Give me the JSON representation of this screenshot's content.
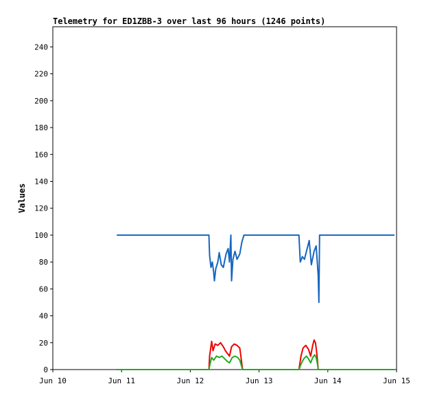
{
  "chart_data": {
    "type": "line",
    "title": "Telemetry for ED1ZBB-3 over last 96 hours (1246 points)",
    "xlabel": "",
    "ylabel": "Values",
    "x_ticks": [
      "Jun 10",
      "Jun 11",
      "Jun 12",
      "Jun 13",
      "Jun 14",
      "Jun 15"
    ],
    "y_ticks": [
      0,
      20,
      40,
      60,
      80,
      100,
      120,
      140,
      160,
      180,
      200,
      220,
      240
    ],
    "xlim": [
      0,
      5
    ],
    "ylim": [
      0,
      255
    ],
    "grid": false,
    "x_unit": "days from Jun 10",
    "series": [
      {
        "color": "#1565c0",
        "points": [
          [
            0.93,
            100
          ],
          [
            2.27,
            100
          ],
          [
            2.28,
            85
          ],
          [
            2.3,
            76
          ],
          [
            2.32,
            80
          ],
          [
            2.34,
            72
          ],
          [
            2.35,
            66
          ],
          [
            2.37,
            75
          ],
          [
            2.4,
            80
          ],
          [
            2.42,
            87
          ],
          [
            2.45,
            78
          ],
          [
            2.48,
            76
          ],
          [
            2.52,
            86
          ],
          [
            2.55,
            90
          ],
          [
            2.57,
            80
          ],
          [
            2.59,
            100
          ],
          [
            2.6,
            66
          ],
          [
            2.62,
            82
          ],
          [
            2.65,
            88
          ],
          [
            2.68,
            82
          ],
          [
            2.72,
            86
          ],
          [
            2.75,
            95
          ],
          [
            2.78,
            100
          ],
          [
            3.58,
            100
          ],
          [
            3.6,
            80
          ],
          [
            3.63,
            84
          ],
          [
            3.66,
            82
          ],
          [
            3.7,
            90
          ],
          [
            3.73,
            96
          ],
          [
            3.76,
            78
          ],
          [
            3.8,
            88
          ],
          [
            3.83,
            92
          ],
          [
            3.86,
            70
          ],
          [
            3.87,
            50
          ],
          [
            3.88,
            100
          ],
          [
            4.97,
            100
          ]
        ]
      },
      {
        "color": "#ee0000",
        "points": [
          [
            0.93,
            0
          ],
          [
            2.27,
            0
          ],
          [
            2.28,
            10
          ],
          [
            2.31,
            21
          ],
          [
            2.33,
            14
          ],
          [
            2.36,
            19
          ],
          [
            2.4,
            18
          ],
          [
            2.44,
            20
          ],
          [
            2.48,
            17
          ],
          [
            2.51,
            14
          ],
          [
            2.54,
            12
          ],
          [
            2.57,
            10
          ],
          [
            2.6,
            17
          ],
          [
            2.64,
            19
          ],
          [
            2.68,
            18
          ],
          [
            2.72,
            16
          ],
          [
            2.76,
            0
          ],
          [
            3.58,
            0
          ],
          [
            3.61,
            10
          ],
          [
            3.64,
            16
          ],
          [
            3.68,
            18
          ],
          [
            3.72,
            15
          ],
          [
            3.75,
            10
          ],
          [
            3.78,
            18
          ],
          [
            3.8,
            22
          ],
          [
            3.82,
            20
          ],
          [
            3.84,
            12
          ],
          [
            3.86,
            0
          ],
          [
            4.97,
            0
          ]
        ]
      },
      {
        "color": "#22aa22",
        "points": [
          [
            0.93,
            0
          ],
          [
            2.27,
            0
          ],
          [
            2.29,
            5
          ],
          [
            2.31,
            9
          ],
          [
            2.34,
            7
          ],
          [
            2.38,
            10
          ],
          [
            2.42,
            9
          ],
          [
            2.46,
            10
          ],
          [
            2.5,
            8
          ],
          [
            2.54,
            6
          ],
          [
            2.57,
            5
          ],
          [
            2.61,
            9
          ],
          [
            2.65,
            10
          ],
          [
            2.69,
            9
          ],
          [
            2.72,
            7
          ],
          [
            2.76,
            0
          ],
          [
            3.58,
            0
          ],
          [
            3.61,
            4
          ],
          [
            3.65,
            8
          ],
          [
            3.69,
            10
          ],
          [
            3.72,
            8
          ],
          [
            3.75,
            5
          ],
          [
            3.78,
            9
          ],
          [
            3.81,
            11
          ],
          [
            3.83,
            9
          ],
          [
            3.85,
            4
          ],
          [
            3.86,
            0
          ],
          [
            4.97,
            0
          ]
        ]
      }
    ]
  }
}
